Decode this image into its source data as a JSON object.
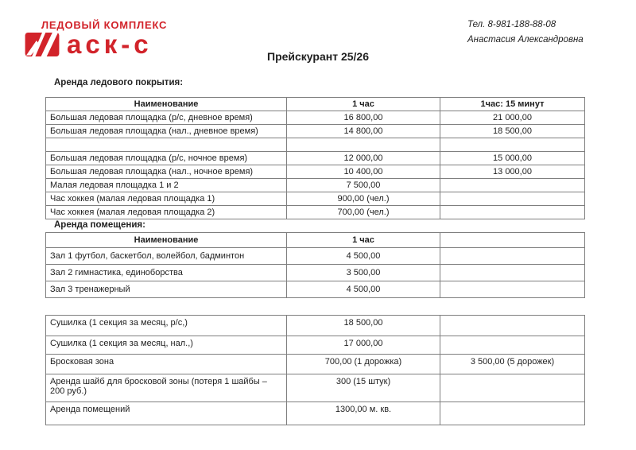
{
  "colors": {
    "brand_red": "#d2232a",
    "text": "#1f1f1f",
    "table_border": "#7f7f7f",
    "background": "#ffffff"
  },
  "logo": {
    "line1": "ЛЕДОВЫЙ КОМПЛЕКС",
    "mark_icon": "red-square-diagonal-slashes",
    "wordmark": "аск-с"
  },
  "contact": {
    "phone": "Тел. 8-981-188-88-08",
    "person": "Анастасия Александровна"
  },
  "title": "Прейскурант 25/26",
  "sections": [
    {
      "heading": "Аренда ледового покрытия:",
      "columns": [
        "Наименование",
        "1 час",
        "1час: 15 минут"
      ],
      "rows": [
        [
          "Большая ледовая площадка (р/с, дневное время)",
          "16 800,00",
          "21 000,00"
        ],
        [
          "Большая ледовая площадка (нал., дневное время)",
          "14 800,00",
          "18 500,00"
        ],
        [
          "",
          "",
          ""
        ],
        [
          "Большая ледовая площадка (р/с, ночное время)",
          "12 000,00",
          "15 000,00"
        ],
        [
          "Большая ледовая площадка (нал., ночное время)",
          "10 400,00",
          "13 000,00"
        ],
        [
          "Малая ледовая площадка 1 и 2",
          "7 500,00",
          ""
        ],
        [
          "Час хоккея (малая ледовая площадка 1)",
          "900,00 (чел.)",
          ""
        ],
        [
          "Час хоккея (малая ледовая площадка 2)",
          "700,00 (чел.)",
          ""
        ]
      ]
    },
    {
      "heading": "Аренда помещения:",
      "columns": [
        "Наименование",
        "1 час",
        ""
      ],
      "rows": [
        [
          "Зал 1 футбол, баскетбол, волейбол, бадминтон",
          "4 500,00",
          ""
        ],
        [
          "Зал 2 гимнастика, единоборства",
          "3 500,00",
          ""
        ],
        [
          "Зал 3 тренажерный",
          "4 500,00",
          ""
        ]
      ]
    },
    {
      "heading": "",
      "columns": [],
      "rows": [
        [
          "Сушилка (1 секция за месяц, р/с,)",
          "18 500,00",
          ""
        ],
        [
          "Сушилка (1 секция за месяц, нал.,)",
          "17 000,00",
          ""
        ],
        [
          "Бросковая зона",
          "700,00 (1 дорожка)",
          "3 500,00 (5 дорожек)"
        ],
        [
          "Аренда шайб для бросковой зоны (потеря 1 шайбы – 200 руб.)",
          "300 (15 штук)",
          ""
        ],
        [
          "Аренда помещений",
          "1300,00 м. кв.",
          ""
        ]
      ]
    }
  ]
}
